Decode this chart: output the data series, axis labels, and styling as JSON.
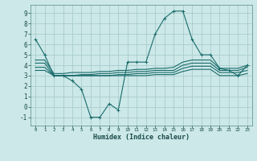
{
  "background_color": "#cce8e8",
  "grid_color": "#aacccc",
  "line_color": "#1a6b6b",
  "xlabel": "Humidex (Indice chaleur)",
  "xlim": [
    -0.5,
    23.5
  ],
  "ylim": [
    -1.8,
    9.8
  ],
  "xticks": [
    0,
    1,
    2,
    3,
    4,
    5,
    6,
    7,
    8,
    9,
    10,
    11,
    12,
    13,
    14,
    15,
    16,
    17,
    18,
    19,
    20,
    21,
    22,
    23
  ],
  "yticks": [
    -1,
    0,
    1,
    2,
    3,
    4,
    5,
    6,
    7,
    8,
    9
  ],
  "series": [
    {
      "x": [
        0,
        1,
        2,
        3,
        4,
        5,
        6,
        7,
        8,
        9,
        10,
        11,
        12,
        13,
        14,
        15,
        16,
        17,
        18,
        19,
        20,
        21,
        22,
        23
      ],
      "y": [
        6.5,
        5.0,
        3.0,
        3.0,
        2.5,
        1.7,
        -1.0,
        -1.0,
        0.3,
        -0.3,
        4.3,
        4.3,
        4.3,
        7.0,
        8.5,
        9.2,
        9.2,
        6.5,
        5.0,
        5.0,
        3.7,
        3.5,
        3.0,
        4.0
      ],
      "marker": "+"
    },
    {
      "x": [
        0,
        1,
        2,
        3,
        4,
        5,
        6,
        7,
        8,
        9,
        10,
        11,
        12,
        13,
        14,
        15,
        16,
        17,
        18,
        19,
        20,
        21,
        22,
        23
      ],
      "y": [
        4.5,
        4.5,
        3.2,
        3.2,
        3.3,
        3.3,
        3.3,
        3.4,
        3.4,
        3.5,
        3.5,
        3.6,
        3.6,
        3.7,
        3.7,
        3.8,
        4.3,
        4.5,
        4.5,
        4.5,
        3.7,
        3.7,
        3.7,
        4.0
      ],
      "marker": null
    },
    {
      "x": [
        0,
        1,
        2,
        3,
        4,
        5,
        6,
        7,
        8,
        9,
        10,
        11,
        12,
        13,
        14,
        15,
        16,
        17,
        18,
        19,
        20,
        21,
        22,
        23
      ],
      "y": [
        4.2,
        4.2,
        3.0,
        3.0,
        3.0,
        3.1,
        3.1,
        3.2,
        3.2,
        3.3,
        3.3,
        3.4,
        3.4,
        3.5,
        3.5,
        3.5,
        4.0,
        4.2,
        4.2,
        4.2,
        3.5,
        3.5,
        3.5,
        3.8
      ],
      "marker": null
    },
    {
      "x": [
        0,
        1,
        2,
        3,
        4,
        5,
        6,
        7,
        8,
        9,
        10,
        11,
        12,
        13,
        14,
        15,
        16,
        17,
        18,
        19,
        20,
        21,
        22,
        23
      ],
      "y": [
        3.8,
        3.8,
        3.0,
        3.0,
        3.0,
        3.0,
        3.0,
        3.0,
        3.0,
        3.1,
        3.1,
        3.2,
        3.2,
        3.3,
        3.3,
        3.3,
        3.7,
        3.9,
        3.9,
        3.9,
        3.3,
        3.3,
        3.3,
        3.5
      ],
      "marker": null
    },
    {
      "x": [
        0,
        1,
        2,
        3,
        4,
        5,
        6,
        7,
        8,
        9,
        10,
        11,
        12,
        13,
        14,
        15,
        16,
        17,
        18,
        19,
        20,
        21,
        22,
        23
      ],
      "y": [
        3.5,
        3.5,
        3.0,
        3.0,
        3.0,
        3.0,
        3.0,
        3.0,
        3.0,
        3.0,
        3.0,
        3.0,
        3.0,
        3.1,
        3.1,
        3.1,
        3.4,
        3.6,
        3.6,
        3.6,
        3.0,
        3.0,
        3.0,
        3.2
      ],
      "marker": null
    }
  ]
}
